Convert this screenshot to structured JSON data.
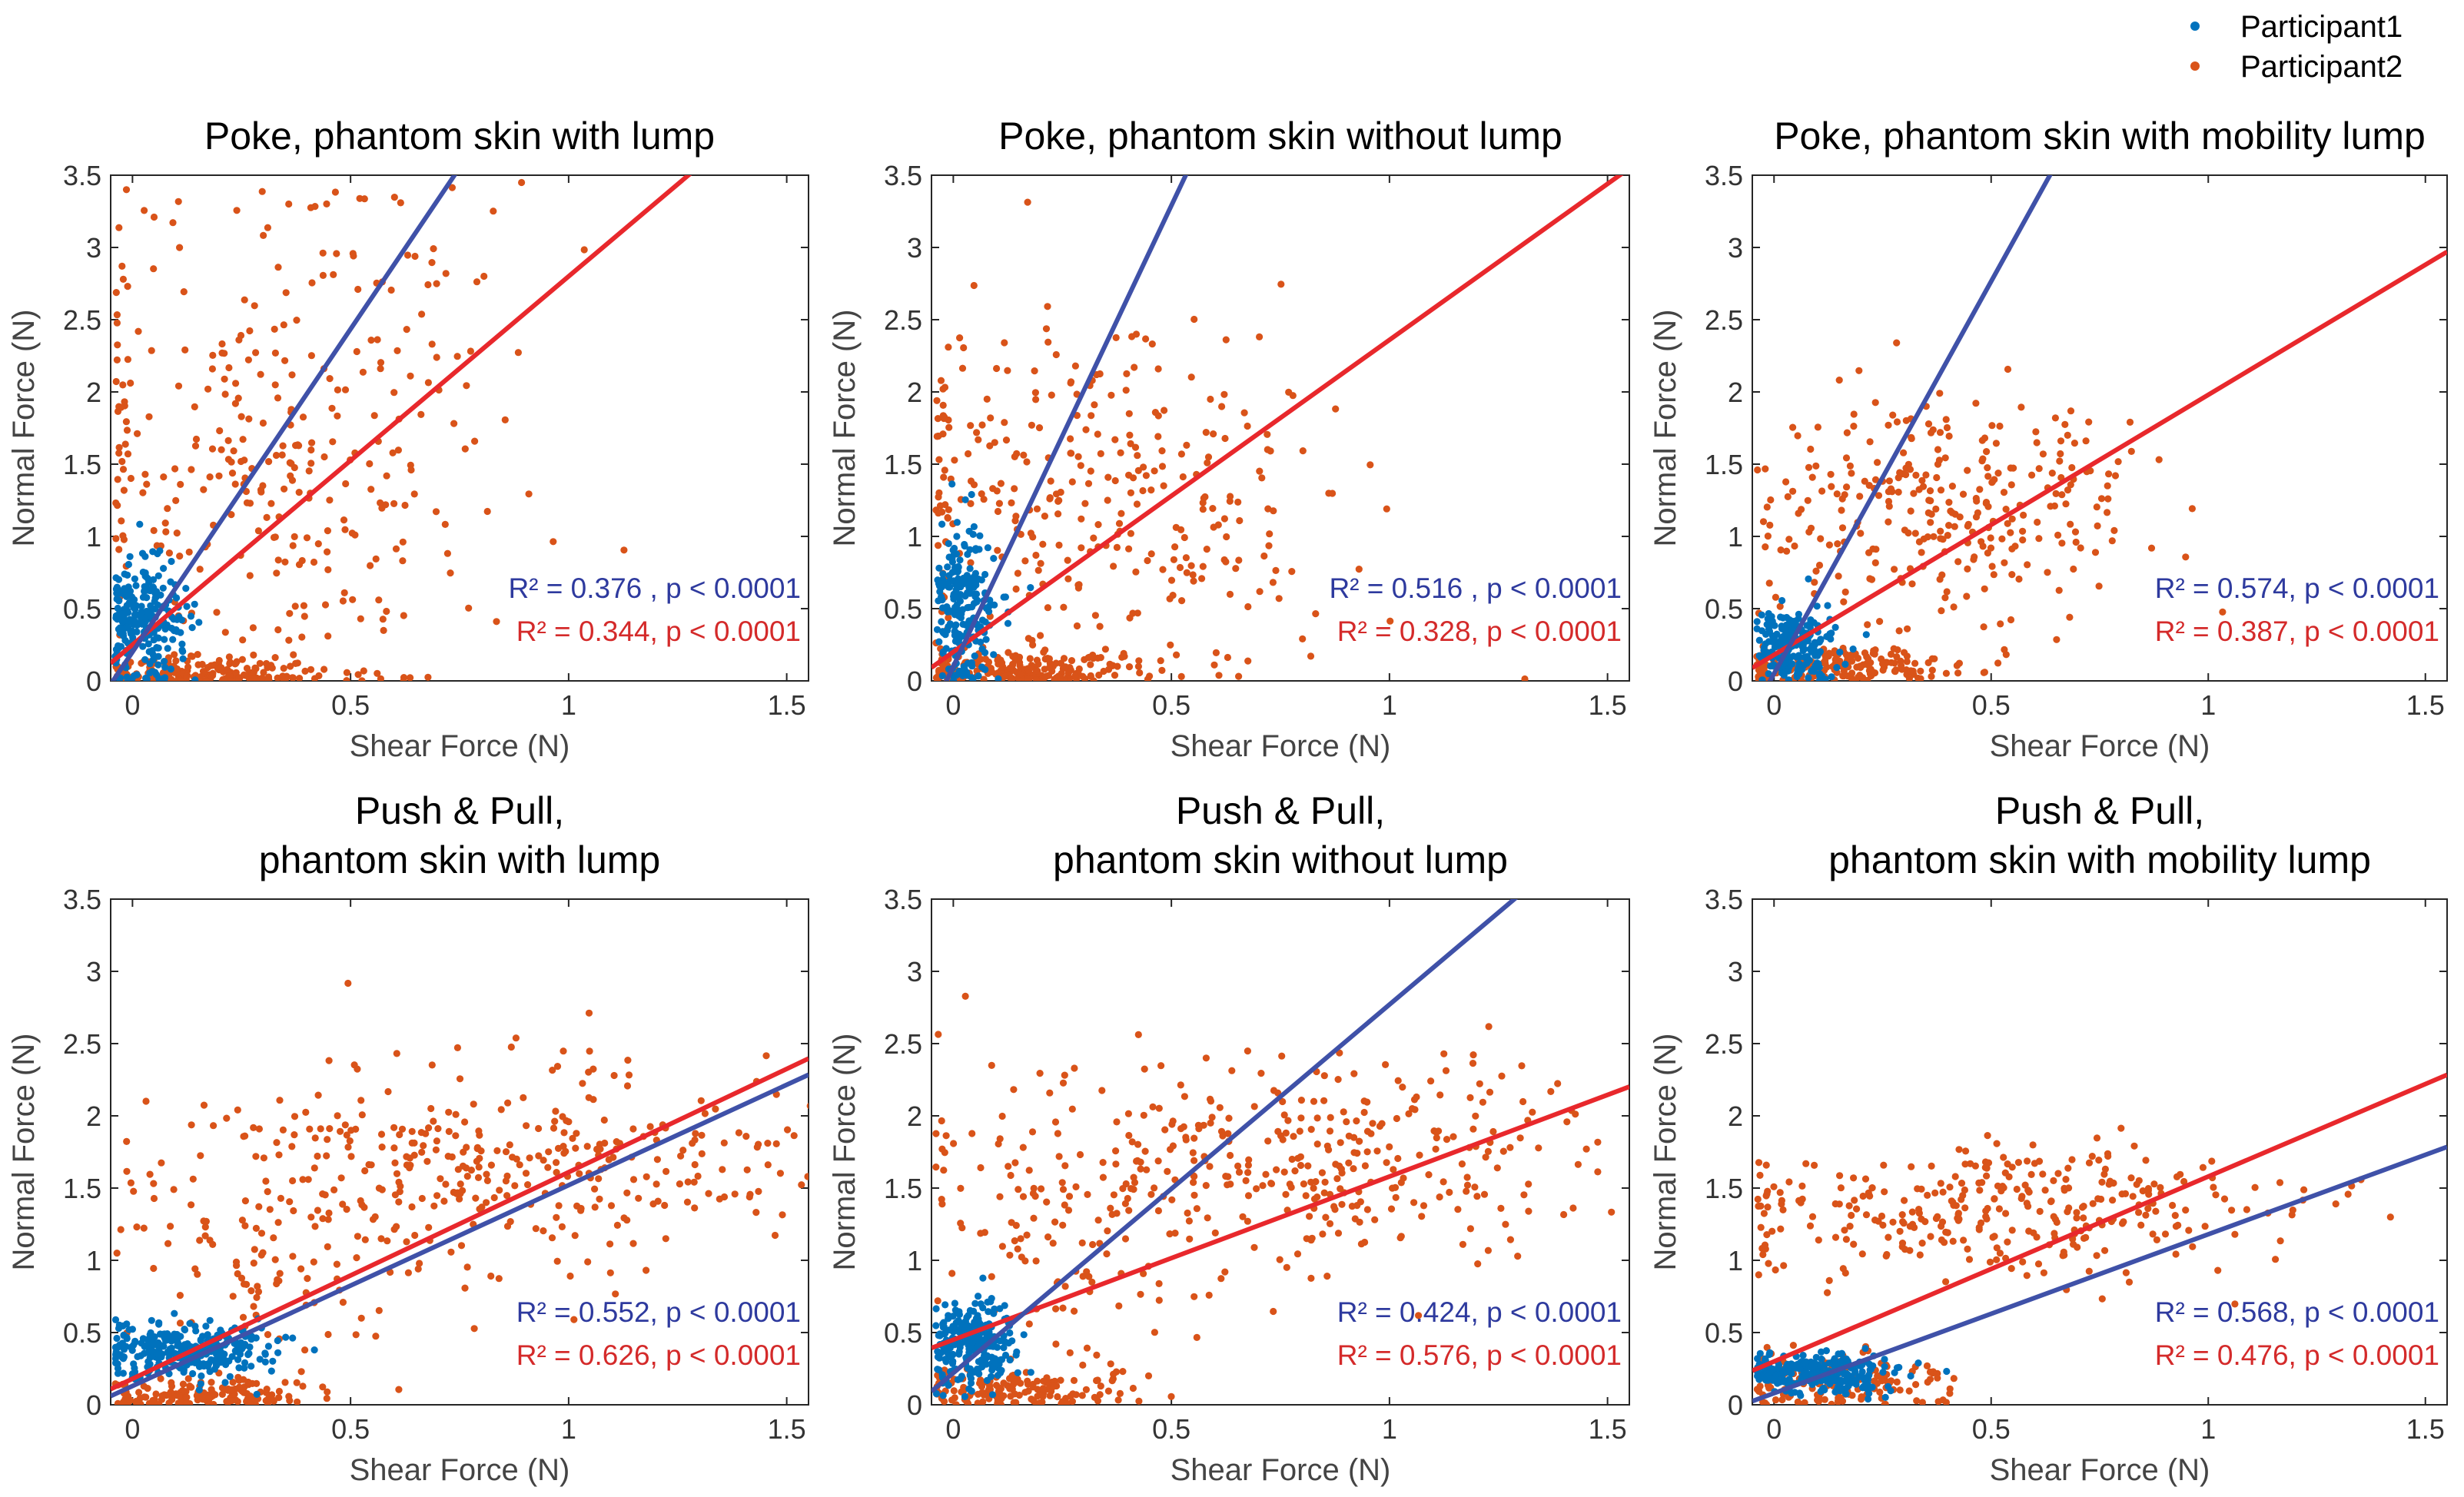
{
  "legend": {
    "entries": [
      {
        "name": "Participant1",
        "color": "#0072bd"
      },
      {
        "name": "Participant2",
        "color": "#d95319"
      }
    ]
  },
  "chart_data": [
    {
      "type": "scatter",
      "title": [
        "Poke, phantom skin with lump"
      ],
      "xlabel": "Shear Force (N)",
      "ylabel": "Normal Force (N)",
      "xlim": [
        -0.05,
        1.55
      ],
      "ylim": [
        0,
        3.5
      ],
      "xticks": [
        "0",
        "0.5",
        "1",
        "1.5"
      ],
      "yticks": [
        "0",
        "0.5",
        "1",
        "1.5",
        "2",
        "2.5",
        "3",
        "3.5"
      ],
      "series": [
        {
          "name": "Participant1",
          "color": "#0072bd",
          "fit": {
            "slope": 4.47,
            "intercept": 0.2,
            "color": "#3f51a8"
          },
          "annotation": {
            "r2": "R² = 0.376 , p < 0.0001",
            "color": "#2e3a9e"
          },
          "clusters": [
            {
              "cx": 0.02,
              "cy": 0.4,
              "sx": 0.05,
              "sy": 0.22,
              "n": 240
            }
          ]
        },
        {
          "name": "Participant2",
          "color": "#d95319",
          "fit": {
            "slope": 2.55,
            "intercept": 0.25,
            "color": "#e8282c"
          },
          "annotation": {
            "r2": "R² = 0.344, p < 0.0001",
            "color": "#d42a2a"
          },
          "clusters": [
            {
              "cx": 0.35,
              "cy": 1.6,
              "sx": 0.28,
              "sy": 0.95,
              "n": 340
            },
            {
              "cx": 0.15,
              "cy": 0.05,
              "sx": 0.15,
              "sy": 0.06,
              "n": 180
            }
          ]
        }
      ]
    },
    {
      "type": "scatter",
      "title": [
        "Poke, phantom skin without lump"
      ],
      "xlabel": "Shear Force (N)",
      "ylabel": "Normal Force (N)",
      "xlim": [
        -0.05,
        1.55
      ],
      "ylim": [
        0,
        3.5
      ],
      "xticks": [
        "0",
        "0.5",
        "1",
        "1.5"
      ],
      "yticks": [
        "0",
        "0.5",
        "1",
        "1.5",
        "2",
        "2.5",
        "3",
        "3.5"
      ],
      "series": [
        {
          "name": "Participant1",
          "color": "#0072bd",
          "fit": {
            "slope": 6.38,
            "intercept": 0.1,
            "color": "#3f51a8"
          },
          "annotation": {
            "r2": "R² = 0.516 , p < 0.0001",
            "color": "#2e3a9e"
          },
          "clusters": [
            {
              "cx": 0.02,
              "cy": 0.5,
              "sx": 0.04,
              "sy": 0.3,
              "n": 220
            }
          ]
        },
        {
          "name": "Participant2",
          "color": "#d95319",
          "fit": {
            "slope": 2.16,
            "intercept": 0.2,
            "color": "#e8282c"
          },
          "annotation": {
            "r2": "R² = 0.328, p < 0.0001",
            "color": "#d42a2a"
          },
          "clusters": [
            {
              "cx": 0.35,
              "cy": 1.3,
              "sx": 0.28,
              "sy": 0.65,
              "n": 320
            },
            {
              "cx": 0.15,
              "cy": 0.08,
              "sx": 0.14,
              "sy": 0.07,
              "n": 200
            }
          ]
        }
      ]
    },
    {
      "type": "scatter",
      "title": [
        "Poke, phantom skin with mobility lump"
      ],
      "xlabel": "Shear Force (N)",
      "ylabel": "Normal Force (N)",
      "xlim": [
        -0.05,
        1.55
      ],
      "ylim": [
        0,
        3.5
      ],
      "xticks": [
        "0",
        "0.5",
        "1",
        "1.5"
      ],
      "yticks": [
        "0",
        "0.5",
        "1",
        "1.5",
        "2",
        "2.5",
        "3",
        "3.5"
      ],
      "series": [
        {
          "name": "Participant1",
          "color": "#0072bd",
          "fit": {
            "slope": 5.43,
            "intercept": 0.05,
            "color": "#3f51a8"
          },
          "annotation": {
            "r2": "R² = 0.574, p < 0.0001",
            "color": "#2e3a9e"
          },
          "clusters": [
            {
              "cx": 0.05,
              "cy": 0.25,
              "sx": 0.05,
              "sy": 0.14,
              "n": 200
            }
          ]
        },
        {
          "name": "Participant2",
          "color": "#d95319",
          "fit": {
            "slope": 1.8,
            "intercept": 0.18,
            "color": "#e8282c"
          },
          "annotation": {
            "r2": "R² = 0.387, p < 0.0001",
            "color": "#d42a2a"
          },
          "clusters": [
            {
              "cx": 0.4,
              "cy": 1.2,
              "sx": 0.22,
              "sy": 0.4,
              "n": 300
            },
            {
              "cx": 0.15,
              "cy": 0.1,
              "sx": 0.14,
              "sy": 0.07,
              "n": 200
            }
          ]
        }
      ]
    },
    {
      "type": "scatter",
      "title": [
        "Push & Pull,",
        "phantom skin with lump"
      ],
      "xlabel": "Shear Force (N)",
      "ylabel": "Normal Force (N)",
      "xlim": [
        -0.05,
        1.55
      ],
      "ylim": [
        0,
        3.5
      ],
      "xticks": [
        "0",
        "0.5",
        "1",
        "1.5"
      ],
      "yticks": [
        "0",
        "0.5",
        "1",
        "1.5",
        "2",
        "2.5",
        "3",
        "3.5"
      ],
      "series": [
        {
          "name": "Participant1",
          "color": "#0072bd",
          "fit": {
            "slope": 1.39,
            "intercept": 0.13,
            "color": "#3f51a8"
          },
          "annotation": {
            "r2": "R² = 0.552, p < 0.0001",
            "color": "#2e3a9e"
          },
          "clusters": [
            {
              "cx": 0.12,
              "cy": 0.38,
              "sx": 0.1,
              "sy": 0.09,
              "n": 300
            }
          ]
        },
        {
          "name": "Participant2",
          "color": "#d95319",
          "fit": {
            "slope": 1.43,
            "intercept": 0.18,
            "color": "#e8282c"
          },
          "annotation": {
            "r2": "R² = 0.626, p < 0.0001",
            "color": "#d42a2a"
          },
          "clusters": [
            {
              "cx": 0.9,
              "cy": 1.65,
              "sx": 0.35,
              "sy": 0.35,
              "n": 320
            },
            {
              "cx": 0.35,
              "cy": 1.2,
              "sx": 0.2,
              "sy": 0.45,
              "n": 130
            },
            {
              "cx": 0.15,
              "cy": 0.06,
              "sx": 0.13,
              "sy": 0.06,
              "n": 150
            }
          ]
        }
      ]
    },
    {
      "type": "scatter",
      "title": [
        "Push & Pull,",
        "phantom skin without lump"
      ],
      "xlabel": "Shear Force (N)",
      "ylabel": "Normal Force (N)",
      "xlim": [
        -0.05,
        1.55
      ],
      "ylim": [
        0,
        3.5
      ],
      "xticks": [
        "0",
        "0.5",
        "1",
        "1.5"
      ],
      "yticks": [
        "0",
        "0.5",
        "1",
        "1.5",
        "2",
        "2.5",
        "3",
        "3.5"
      ],
      "series": [
        {
          "name": "Participant1",
          "color": "#0072bd",
          "fit": {
            "slope": 2.55,
            "intercept": 0.22,
            "color": "#3f51a8"
          },
          "annotation": {
            "r2": "R² = 0.424, p < 0.0001",
            "color": "#2e3a9e"
          },
          "clusters": [
            {
              "cx": 0.04,
              "cy": 0.42,
              "sx": 0.05,
              "sy": 0.14,
              "n": 260
            }
          ]
        },
        {
          "name": "Participant2",
          "color": "#d95319",
          "fit": {
            "slope": 1.13,
            "intercept": 0.45,
            "color": "#e8282c"
          },
          "annotation": {
            "r2": "R² = 0.576, p < 0.0001",
            "color": "#d42a2a"
          },
          "clusters": [
            {
              "cx": 0.85,
              "cy": 1.75,
              "sx": 0.32,
              "sy": 0.35,
              "n": 320
            },
            {
              "cx": 0.3,
              "cy": 1.3,
              "sx": 0.18,
              "sy": 0.45,
              "n": 120
            },
            {
              "cx": 0.15,
              "cy": 0.1,
              "sx": 0.12,
              "sy": 0.08,
              "n": 160
            }
          ]
        }
      ]
    },
    {
      "type": "scatter",
      "title": [
        "Push & Pull,",
        "phantom skin with mobility lump"
      ],
      "xlabel": "Shear Force (N)",
      "ylabel": "Normal Force (N)",
      "xlim": [
        -0.05,
        1.55
      ],
      "ylim": [
        0,
        3.5
      ],
      "xticks": [
        "0",
        "0.5",
        "1",
        "1.5"
      ],
      "yticks": [
        "0",
        "0.5",
        "1",
        "1.5",
        "2",
        "2.5",
        "3",
        "3.5"
      ],
      "series": [
        {
          "name": "Participant1",
          "color": "#0072bd",
          "fit": {
            "slope": 1.1,
            "intercept": 0.08,
            "color": "#3f51a8"
          },
          "annotation": {
            "r2": "R² = 0.568, p < 0.0001",
            "color": "#2e3a9e"
          },
          "clusters": [
            {
              "cx": 0.1,
              "cy": 0.22,
              "sx": 0.09,
              "sy": 0.07,
              "n": 260
            }
          ]
        },
        {
          "name": "Participant2",
          "color": "#d95319",
          "fit": {
            "slope": 1.28,
            "intercept": 0.3,
            "color": "#e8282c"
          },
          "annotation": {
            "r2": "R² = 0.476, p < 0.0001",
            "color": "#d42a2a"
          },
          "clusters": [
            {
              "cx": 0.55,
              "cy": 1.35,
              "sx": 0.32,
              "sy": 0.22,
              "n": 330
            },
            {
              "cx": 0.15,
              "cy": 0.15,
              "sx": 0.12,
              "sy": 0.1,
              "n": 170
            }
          ]
        }
      ]
    }
  ]
}
